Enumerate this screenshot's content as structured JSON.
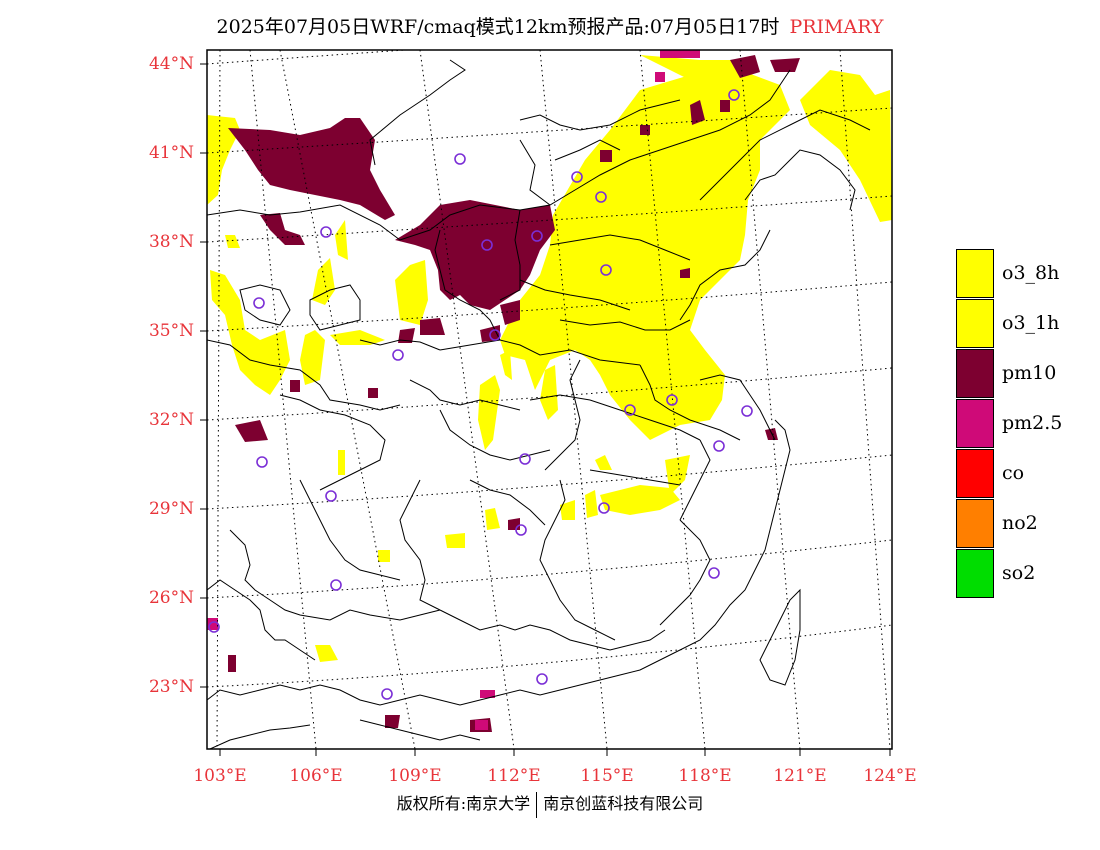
{
  "title": {
    "main": "2025年07月05日WRF/cmaq模式12km预报产品:07月05日17时",
    "tag": "PRIMARY"
  },
  "map": {
    "lat_labels": [
      "44°N",
      "41°N",
      "38°N",
      "35°N",
      "32°N",
      "29°N",
      "26°N",
      "23°N"
    ],
    "lon_labels": [
      "103°E",
      "106°E",
      "109°E",
      "112°E",
      "115°E",
      "118°E",
      "121°E",
      "124°E"
    ]
  },
  "legend": {
    "items": [
      {
        "label": "o3_8h",
        "color": "#ffff00"
      },
      {
        "label": "o3_1h",
        "color": "#ffff00"
      },
      {
        "label": "pm10",
        "color": "#7d0030"
      },
      {
        "label": "pm2.5",
        "color": "#cf0a78"
      },
      {
        "label": "co",
        "color": "#ff0000"
      },
      {
        "label": "no2",
        "color": "#ff7f00"
      },
      {
        "label": "so2",
        "color": "#00dd00"
      }
    ]
  },
  "copyright": {
    "left": "版权所有:南京大学",
    "right": "南京创蓝科技有限公司"
  },
  "colors": {
    "axis_label": "#e8343a",
    "station_marker": "#7b2fd6",
    "border": "#000000"
  }
}
